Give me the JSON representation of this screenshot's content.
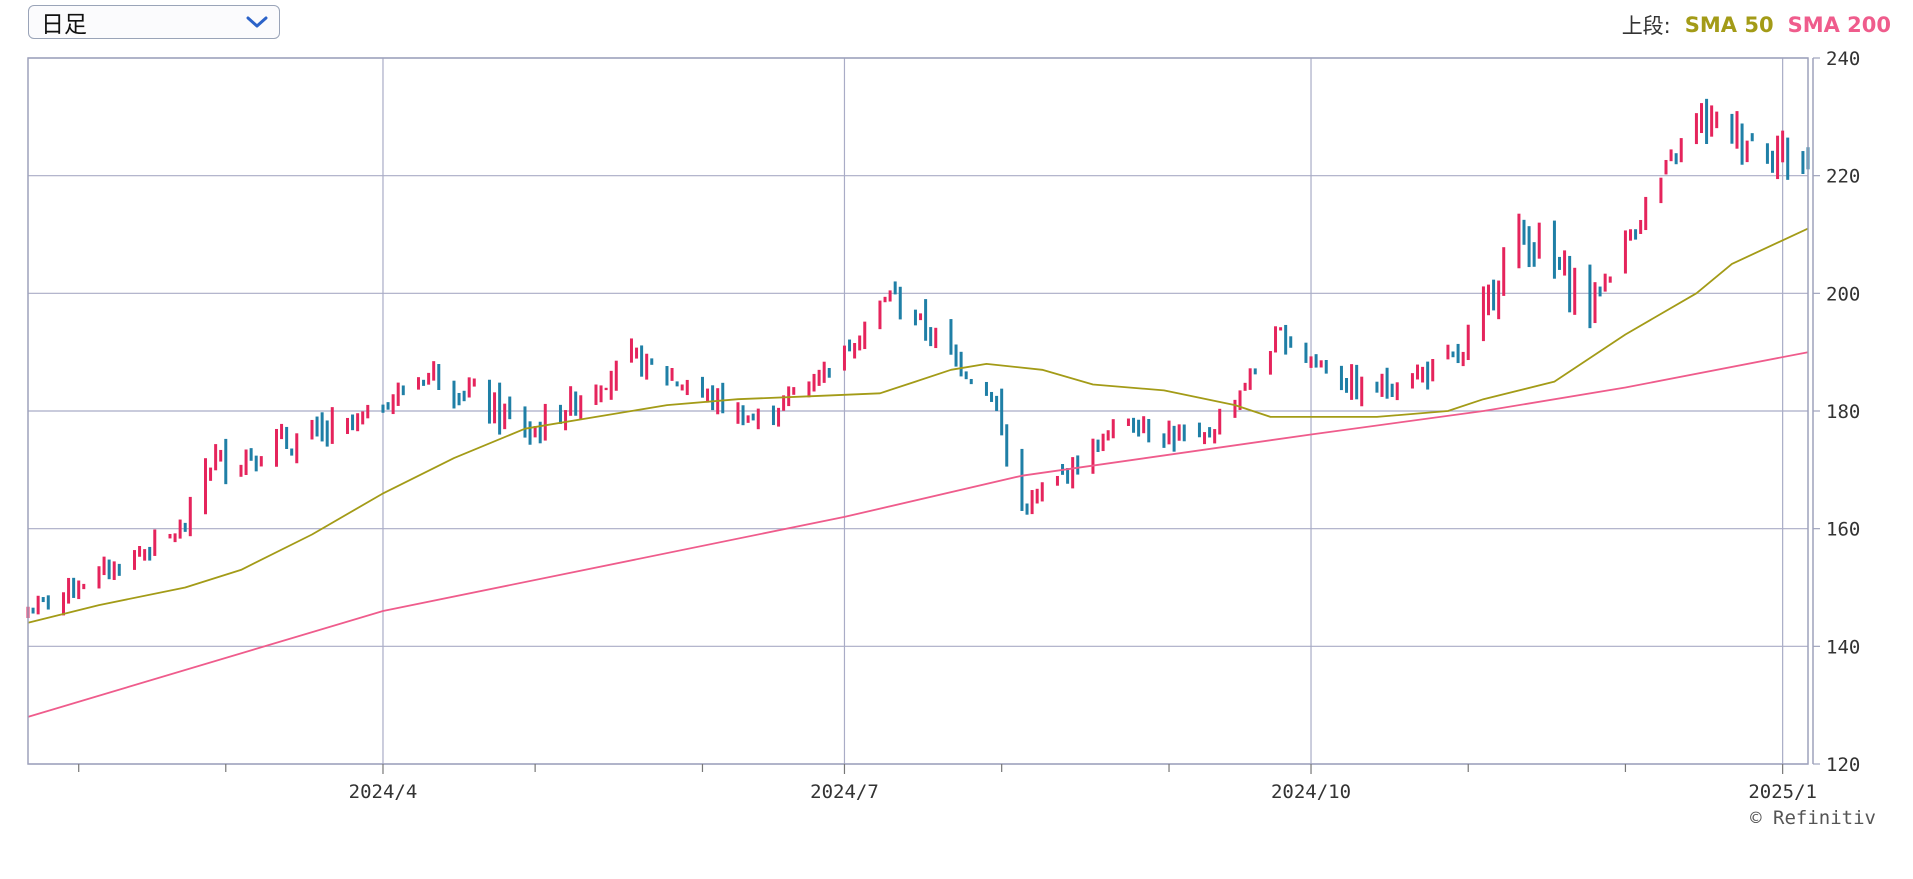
{
  "period_select": {
    "value": "日足",
    "icon": "chevron-down-icon"
  },
  "legend": {
    "prefix": "上段:",
    "sma50_label": "SMA 50",
    "sma200_label": "SMA 200"
  },
  "colors": {
    "up": "#e5245c",
    "down": "#1f7fa6",
    "sma50": "#a39b17",
    "sma200": "#ef5c8c",
    "grid": "#a9acc6"
  },
  "copyright": "© Refinitiv",
  "chart_data": {
    "type": "candlestick-ohlc",
    "x_range": [
      "2024-01-22",
      "2025-01-07"
    ],
    "ylim": [
      120,
      240
    ],
    "y_ticks": [
      "120",
      "140",
      "160",
      "180",
      "200",
      "220",
      "240"
    ],
    "x_labels": [
      {
        "label": "2024/4",
        "date": "2024-04-01"
      },
      {
        "label": "2024/7",
        "date": "2024-07-01"
      },
      {
        "label": "2024/10",
        "date": "2024-10-01"
      },
      {
        "label": "2025/1",
        "date": "2025-01-02"
      }
    ],
    "minor_tick_dates": [
      "2024-02-01",
      "2024-03-01",
      "2024-05-01",
      "2024-06-03",
      "2024-08-01",
      "2024-09-03",
      "2024-11-01",
      "2024-12-02"
    ],
    "grid": true,
    "price_ranges": [
      {
        "from": "2024-01-22",
        "to": "2024-02-22",
        "start": 146,
        "end": 160,
        "amp": 1.5
      },
      {
        "from": "2024-02-22",
        "to": "2024-02-26",
        "start": 160,
        "end": 171,
        "amp": 1.5
      },
      {
        "from": "2024-02-26",
        "to": "2024-03-25",
        "start": 171,
        "end": 177,
        "amp": 2.5
      },
      {
        "from": "2024-03-25",
        "to": "2024-04-11",
        "start": 177,
        "end": 187,
        "amp": 1.5
      },
      {
        "from": "2024-04-11",
        "to": "2024-04-30",
        "start": 187,
        "end": 176,
        "amp": 2.5
      },
      {
        "from": "2024-04-30",
        "to": "2024-05-20",
        "start": 176,
        "end": 189,
        "amp": 2
      },
      {
        "from": "2024-05-20",
        "to": "2024-06-14",
        "start": 189,
        "end": 178,
        "amp": 2
      },
      {
        "from": "2024-06-14",
        "to": "2024-07-01",
        "start": 178,
        "end": 190,
        "amp": 1.5
      },
      {
        "from": "2024-07-01",
        "to": "2024-07-10",
        "start": 190,
        "end": 200,
        "amp": 1.5
      },
      {
        "from": "2024-07-10",
        "to": "2024-07-30",
        "start": 200,
        "end": 183,
        "amp": 2
      },
      {
        "from": "2024-07-30",
        "to": "2024-08-05",
        "start": 183,
        "end": 163,
        "amp": 3
      },
      {
        "from": "2024-08-05",
        "to": "2024-08-26",
        "start": 163,
        "end": 179,
        "amp": 1.5
      },
      {
        "from": "2024-08-26",
        "to": "2024-09-09",
        "start": 179,
        "end": 174,
        "amp": 2
      },
      {
        "from": "2024-09-09",
        "to": "2024-09-25",
        "start": 174,
        "end": 193,
        "amp": 1.5
      },
      {
        "from": "2024-09-25",
        "to": "2024-10-11",
        "start": 193,
        "end": 183,
        "amp": 2
      },
      {
        "from": "2024-10-11",
        "to": "2024-10-31",
        "start": 183,
        "end": 189,
        "amp": 2
      },
      {
        "from": "2024-10-31",
        "to": "2024-11-11",
        "start": 189,
        "end": 211,
        "amp": 2.5
      },
      {
        "from": "2024-11-11",
        "to": "2024-11-25",
        "start": 211,
        "end": 198,
        "amp": 3
      },
      {
        "from": "2024-11-25",
        "to": "2024-12-16",
        "start": 198,
        "end": 230,
        "amp": 1.5
      },
      {
        "from": "2024-12-16",
        "to": "2025-01-07",
        "start": 230,
        "end": 222,
        "amp": 3
      }
    ],
    "series": [
      {
        "name": "SMA 50",
        "points": [
          [
            "2024-01-22",
            144
          ],
          [
            "2024-02-05",
            147
          ],
          [
            "2024-02-22",
            150
          ],
          [
            "2024-03-04",
            153
          ],
          [
            "2024-03-18",
            159
          ],
          [
            "2024-04-01",
            166
          ],
          [
            "2024-04-15",
            172
          ],
          [
            "2024-04-29",
            177
          ],
          [
            "2024-05-13",
            179
          ],
          [
            "2024-05-27",
            181
          ],
          [
            "2024-06-10",
            182
          ],
          [
            "2024-06-24",
            182.5
          ],
          [
            "2024-07-08",
            183
          ],
          [
            "2024-07-15",
            185
          ],
          [
            "2024-07-22",
            187
          ],
          [
            "2024-07-29",
            188
          ],
          [
            "2024-08-09",
            187
          ],
          [
            "2024-08-19",
            184.5
          ],
          [
            "2024-09-02",
            183.5
          ],
          [
            "2024-09-16",
            181
          ],
          [
            "2024-09-23",
            179
          ],
          [
            "2024-10-14",
            179
          ],
          [
            "2024-10-28",
            180
          ],
          [
            "2024-11-04",
            182
          ],
          [
            "2024-11-18",
            185
          ],
          [
            "2024-12-02",
            193
          ],
          [
            "2024-12-16",
            200
          ],
          [
            "2024-12-23",
            205
          ],
          [
            "2025-01-07",
            211
          ]
        ]
      },
      {
        "name": "SMA 200",
        "points": [
          [
            "2024-01-22",
            128
          ],
          [
            "2024-04-01",
            146
          ],
          [
            "2024-07-01",
            162
          ],
          [
            "2024-08-05",
            169
          ],
          [
            "2024-10-01",
            176
          ],
          [
            "2024-11-04",
            180
          ],
          [
            "2024-12-02",
            184
          ],
          [
            "2025-01-07",
            190
          ]
        ]
      }
    ]
  }
}
